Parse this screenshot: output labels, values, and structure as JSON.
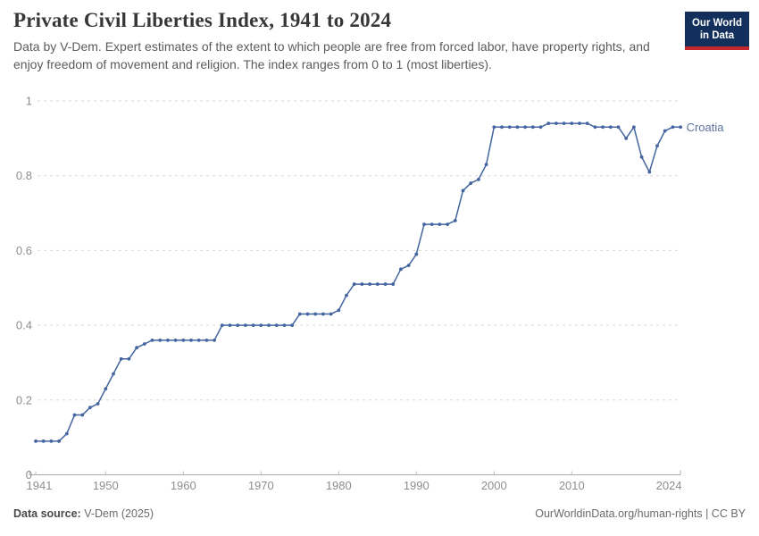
{
  "header": {
    "title": "Private Civil Liberties Index, 1941 to 2024",
    "subtitle": "Data by V-Dem. Expert estimates of the extent to which people are free from forced labor, have property rights, and enjoy freedom of movement and religion. The index ranges from 0 to 1 (most liberties).",
    "logo_line1": "Our World",
    "logo_line2": "in Data"
  },
  "footer": {
    "source_label": "Data source:",
    "source_value": " V-Dem (2025)",
    "credit_link": "OurWorldinData.org/human-rights",
    "credit_license": " | CC BY"
  },
  "chart_data": {
    "type": "line",
    "title": "Private Civil Liberties Index, 1941 to 2024",
    "xlabel": "",
    "ylabel": "",
    "ylim": [
      0,
      1
    ],
    "xlim": [
      1941,
      2024
    ],
    "grid": "horizontal-dashed",
    "legend_position": "right-end-of-line",
    "colors": {
      "line": "#44659f",
      "series_label": "#5d719f",
      "gridline": "#dadada",
      "axis": "#a9a9a9",
      "tick_text": "#8e8e8e"
    },
    "x_ticks": [
      1941,
      1950,
      1960,
      1970,
      1980,
      1990,
      2000,
      2010,
      2024
    ],
    "y_ticks": [
      0,
      0.2,
      0.4,
      0.6,
      0.8,
      1
    ],
    "x": [
      1941,
      1942,
      1943,
      1944,
      1945,
      1946,
      1947,
      1948,
      1949,
      1950,
      1951,
      1952,
      1953,
      1954,
      1955,
      1956,
      1957,
      1958,
      1959,
      1960,
      1961,
      1962,
      1963,
      1964,
      1965,
      1966,
      1967,
      1968,
      1969,
      1970,
      1971,
      1972,
      1973,
      1974,
      1975,
      1976,
      1977,
      1978,
      1979,
      1980,
      1981,
      1982,
      1983,
      1984,
      1985,
      1986,
      1987,
      1988,
      1989,
      1990,
      1991,
      1992,
      1993,
      1994,
      1995,
      1996,
      1997,
      1998,
      1999,
      2000,
      2001,
      2002,
      2003,
      2004,
      2005,
      2006,
      2007,
      2008,
      2009,
      2010,
      2011,
      2012,
      2013,
      2014,
      2015,
      2016,
      2017,
      2018,
      2019,
      2020,
      2021,
      2022,
      2023,
      2024
    ],
    "series": [
      {
        "name": "Croatia",
        "values": [
          0.09,
          0.09,
          0.09,
          0.09,
          0.11,
          0.16,
          0.16,
          0.18,
          0.19,
          0.23,
          0.27,
          0.31,
          0.31,
          0.34,
          0.35,
          0.36,
          0.36,
          0.36,
          0.36,
          0.36,
          0.36,
          0.36,
          0.36,
          0.36,
          0.4,
          0.4,
          0.4,
          0.4,
          0.4,
          0.4,
          0.4,
          0.4,
          0.4,
          0.4,
          0.43,
          0.43,
          0.43,
          0.43,
          0.43,
          0.44,
          0.48,
          0.51,
          0.51,
          0.51,
          0.51,
          0.51,
          0.51,
          0.55,
          0.56,
          0.59,
          0.67,
          0.67,
          0.67,
          0.67,
          0.68,
          0.76,
          0.78,
          0.79,
          0.83,
          0.93,
          0.93,
          0.93,
          0.93,
          0.93,
          0.93,
          0.93,
          0.94,
          0.94,
          0.94,
          0.94,
          0.94,
          0.94,
          0.93,
          0.93,
          0.93,
          0.93,
          0.9,
          0.93,
          0.85,
          0.81,
          0.88,
          0.92,
          0.93,
          0.93
        ]
      }
    ]
  }
}
